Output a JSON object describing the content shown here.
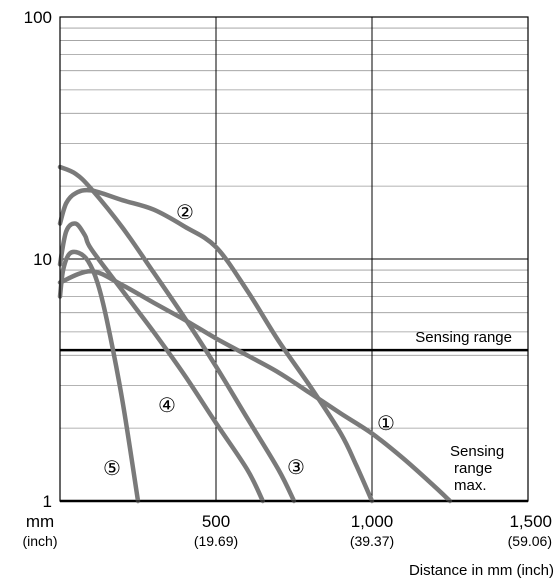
{
  "chart_data": {
    "type": "line",
    "x_scale": "linear",
    "y_scale": "log",
    "xlim": [
      0,
      1500
    ],
    "ylim": [
      1,
      100
    ],
    "xlabel": "Distance in mm (inch)",
    "x_unit_label": {
      "main": "mm",
      "sub": "(inch)"
    },
    "x_ticks": [
      {
        "value": 500,
        "main": "500",
        "sub": "(19.69)"
      },
      {
        "value": 1000,
        "main": "1,000",
        "sub": "(39.37)"
      },
      {
        "value": 1500,
        "main": "1,500",
        "sub": "(59.06)"
      }
    ],
    "y_ticks": [
      {
        "value": 1,
        "label": "1"
      },
      {
        "value": 10,
        "label": "10"
      },
      {
        "value": 100,
        "label": "100"
      }
    ],
    "grid": true,
    "reference_lines": [
      {
        "y": 4.2,
        "label": "Sensing range"
      },
      {
        "y": 1,
        "label": "Sensing range max."
      }
    ],
    "series": [
      {
        "marker": "①",
        "points": [
          [
            0,
            8
          ],
          [
            100,
            8.9
          ],
          [
            200,
            7.8
          ],
          [
            300,
            6.6
          ],
          [
            400,
            5.6
          ],
          [
            500,
            4.7
          ],
          [
            600,
            4.0
          ],
          [
            700,
            3.4
          ],
          [
            800,
            2.8
          ],
          [
            900,
            2.3
          ],
          [
            1000,
            1.9
          ],
          [
            1100,
            1.5
          ],
          [
            1200,
            1.15
          ],
          [
            1250,
            1
          ]
        ]
      },
      {
        "marker": "②",
        "points": [
          [
            0,
            14
          ],
          [
            20,
            17
          ],
          [
            50,
            18.7
          ],
          [
            100,
            19.2
          ],
          [
            200,
            17.5
          ],
          [
            300,
            16
          ],
          [
            400,
            13.6
          ],
          [
            500,
            11.2
          ],
          [
            600,
            7.4
          ],
          [
            700,
            4.6
          ],
          [
            800,
            3
          ],
          [
            900,
            1.9
          ],
          [
            950,
            1.4
          ],
          [
            1000,
            1
          ]
        ]
      },
      {
        "marker": "③",
        "points": [
          [
            0,
            24
          ],
          [
            50,
            22.5
          ],
          [
            100,
            19.5
          ],
          [
            200,
            13.5
          ],
          [
            300,
            8.8
          ],
          [
            400,
            5.7
          ],
          [
            500,
            3.6
          ],
          [
            600,
            2.2
          ],
          [
            700,
            1.35
          ],
          [
            750,
            1
          ]
        ]
      },
      {
        "marker": "④",
        "points": [
          [
            0,
            9.5
          ],
          [
            20,
            13
          ],
          [
            50,
            14
          ],
          [
            80,
            12.5
          ],
          [
            100,
            11
          ],
          [
            200,
            7.4
          ],
          [
            300,
            5
          ],
          [
            400,
            3.3
          ],
          [
            500,
            2.1
          ],
          [
            600,
            1.35
          ],
          [
            650,
            1
          ]
        ]
      },
      {
        "marker": "⑤",
        "points": [
          [
            0,
            7
          ],
          [
            10,
            9
          ],
          [
            30,
            10.5
          ],
          [
            60,
            10.6
          ],
          [
            90,
            9.8
          ],
          [
            120,
            8
          ],
          [
            150,
            5.6
          ],
          [
            200,
            2.6
          ],
          [
            250,
            1
          ]
        ]
      }
    ]
  }
}
